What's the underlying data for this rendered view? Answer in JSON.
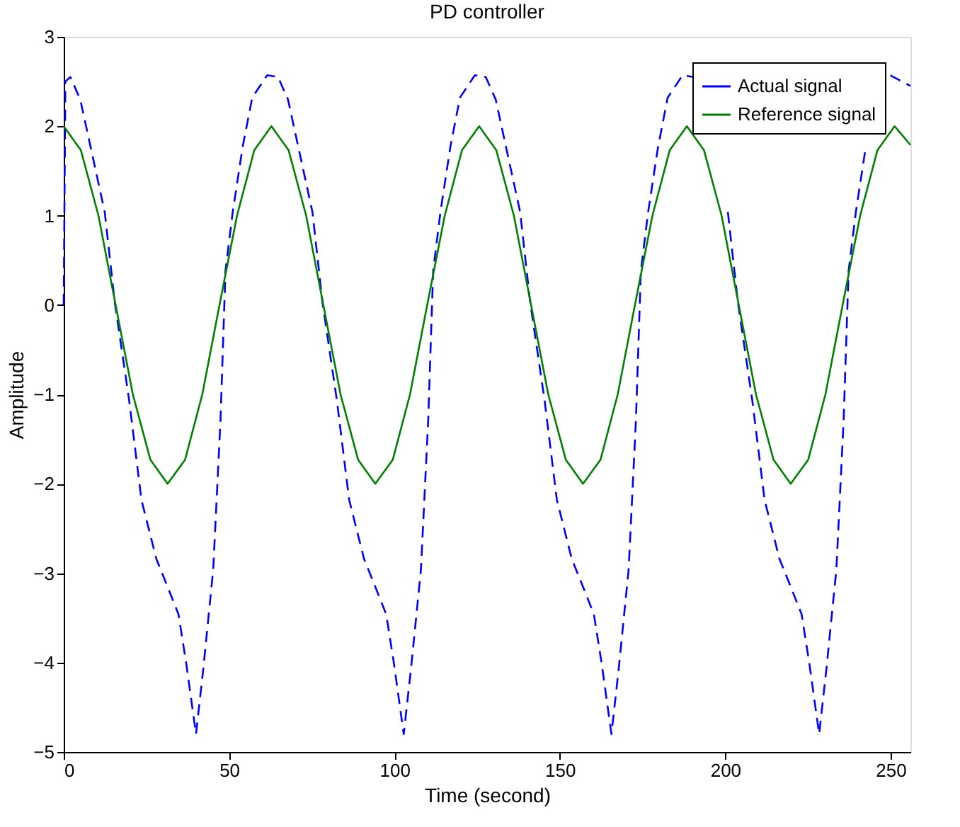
{
  "chart_data": {
    "type": "line",
    "title": "PD controller",
    "xlabel": "Time (second)",
    "ylabel": "Amplitude",
    "xlim": [
      0,
      256
    ],
    "xticks": [
      0,
      50,
      100,
      150,
      200,
      250
    ],
    "ylim": [
      -5,
      3
    ],
    "yticks": [
      -5,
      -4,
      -3,
      -2,
      -1,
      0,
      1,
      2,
      3
    ],
    "grid": false,
    "legend": "top right",
    "series": [
      {
        "name": "Actual signal",
        "color": "#0000ff",
        "line_style": "dashed",
        "x": [
          0,
          0.5,
          2,
          5,
          12.4,
          15.4,
          19.8,
          23.5,
          28,
          31.7,
          34.7,
          37,
          40,
          42.2,
          45.2,
          47.4,
          48.9,
          51.1,
          54.1,
          57,
          61.5,
          64.8,
          67.8,
          75.2,
          78.2,
          82.6,
          86.3,
          90.8,
          94.5,
          97.5,
          99.8,
          102.8,
          105,
          108,
          110.2,
          111.7,
          113.9,
          116.9,
          119.8,
          124.3,
          127.6,
          130.6,
          138,
          141,
          145.4,
          149.1,
          153.6,
          157.3,
          160.3,
          162.6,
          165.6,
          167.8,
          170.8,
          173,
          174.5,
          176.7,
          179.7,
          182.6,
          187.1,
          190.4,
          193.4,
          200.8,
          203.8,
          208.2,
          211.9,
          216.4,
          220.1,
          223.1,
          225.4,
          228.4,
          230.6,
          233.6,
          235.8,
          237.3,
          239.5,
          242.5,
          245.4,
          249.9,
          256
        ],
        "values": [
          0,
          2.5,
          2.55,
          2.3,
          1.04,
          0.04,
          -1.07,
          -2.18,
          -2.84,
          -3.18,
          -3.46,
          -4.0,
          -4.8,
          -4.07,
          -2.96,
          -1.29,
          0.38,
          1.04,
          1.77,
          2.32,
          2.57,
          2.55,
          2.3,
          1.04,
          0.04,
          -1.07,
          -2.18,
          -2.84,
          -3.18,
          -3.46,
          -4.0,
          -4.8,
          -4.07,
          -2.96,
          -1.29,
          0.38,
          1.04,
          1.77,
          2.32,
          2.57,
          2.55,
          2.3,
          1.04,
          0.04,
          -1.07,
          -2.18,
          -2.84,
          -3.18,
          -3.46,
          -4.0,
          -4.8,
          -4.07,
          -2.96,
          -1.29,
          0.38,
          1.04,
          1.77,
          2.32,
          2.57,
          2.55,
          null,
          1.04,
          0.04,
          -1.07,
          -2.18,
          -2.84,
          -3.18,
          -3.46,
          -4.0,
          -4.8,
          -4.07,
          -2.96,
          -1.29,
          0.38,
          1.04,
          1.77,
          null,
          2.57,
          2.45
        ]
      },
      {
        "name": "Reference signal",
        "color": "#008000",
        "line_style": "solid",
        "x": [
          0,
          5.2,
          10.5,
          15.7,
          20.9,
          26.2,
          31.4,
          36.7,
          41.9,
          47.1,
          52.4,
          57.6,
          62.8,
          68,
          73.3,
          78.5,
          83.7,
          89,
          94.2,
          99.5,
          104.7,
          109.9,
          115.2,
          120.4,
          125.6,
          130.8,
          136.1,
          141.3,
          146.5,
          151.8,
          157,
          162.3,
          167.5,
          172.7,
          178,
          183.2,
          188.4,
          193.6,
          198.9,
          204.1,
          209.3,
          214.6,
          219.8,
          225.1,
          230.3,
          235.5,
          240.8,
          246,
          251.2,
          256
        ],
        "values": [
          2,
          1.73,
          1,
          0,
          -1,
          -1.73,
          -2,
          -1.73,
          -1,
          0,
          1,
          1.73,
          2,
          1.73,
          1,
          0,
          -1,
          -1.73,
          -2,
          -1.73,
          -1,
          0,
          1,
          1.73,
          2,
          1.73,
          1,
          0,
          -1,
          -1.73,
          -2,
          -1.73,
          -1,
          0,
          1,
          1.73,
          2,
          1.73,
          1,
          0,
          -1,
          -1.73,
          -2,
          -1.73,
          -1,
          0,
          1,
          1.73,
          2,
          1.79
        ]
      }
    ]
  }
}
